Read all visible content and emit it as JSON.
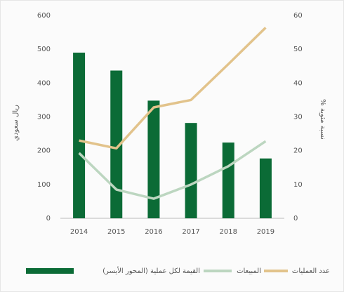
{
  "chart_data": {
    "type": "bar",
    "y_label": "ريال سعودي",
    "y2_label": "نسبة مئوية %",
    "categories": [
      "2014",
      "2015",
      "2016",
      "2017",
      "2018",
      "2019"
    ],
    "ylim": [
      0,
      600
    ],
    "yticks": [
      0,
      100,
      200,
      300,
      400,
      500,
      600
    ],
    "y2lim": [
      0,
      60
    ],
    "y2ticks": [
      0,
      10,
      20,
      30,
      40,
      50,
      60
    ],
    "grid": false,
    "legend": "bottom",
    "series": [
      {
        "name": "القيمة لكل عملية (المحور الأيسر)",
        "type": "bar",
        "color": "#0b6b36",
        "values": [
          490,
          437,
          348,
          282,
          224,
          177
        ]
      },
      {
        "name": "المبيعات",
        "type": "line",
        "axis": "y2",
        "color": "#bcd6c0",
        "values": [
          19.3,
          8.5,
          5.8,
          10,
          15.4,
          22.8
        ]
      },
      {
        "name": "عدد العمليات",
        "type": "line",
        "axis": "y2",
        "color": "#e2c38b",
        "values": [
          23,
          20.7,
          32.8,
          35,
          45.6,
          56.4
        ]
      }
    ]
  }
}
